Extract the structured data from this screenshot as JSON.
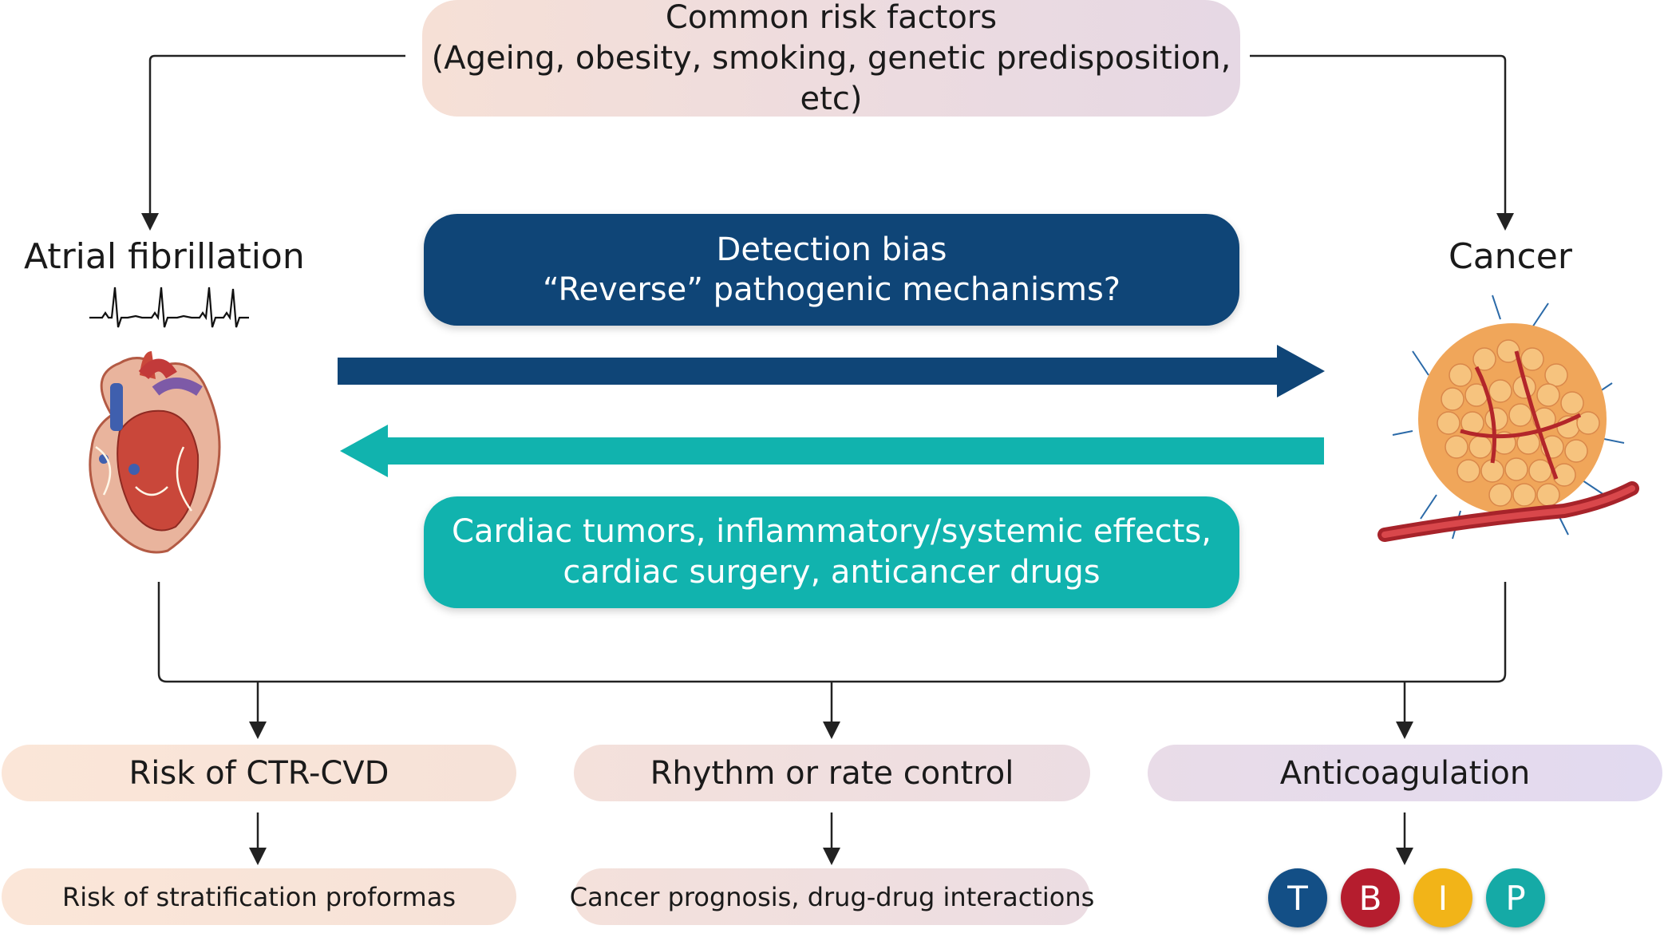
{
  "top_box": {
    "line1": "Common risk factors",
    "line2": "(Ageing, obesity, smoking, genetic predisposition, etc)"
  },
  "left_node": {
    "label": "Atrial fibrillation"
  },
  "right_node": {
    "label": "Cancer"
  },
  "blue_box": {
    "line1": "Detection bias",
    "line2": "“Reverse” pathogenic mechanisms?",
    "color": "#0f4577"
  },
  "teal_box": {
    "line1": "Cardiac tumors, inflammatory/systemic effects,",
    "line2": "cardiac surgery, anticancer drugs",
    "color": "#11b3ae"
  },
  "outcomes": {
    "ctr": "Risk of CTR-CVD",
    "rhythm": "Rhythm or rate control",
    "anticoag": "Anticoagulation",
    "strat": "Risk of stratification proformas",
    "prognosis": "Cancer prognosis, drug-drug interactions"
  },
  "tbip": [
    {
      "letter": "T",
      "color": "#134f86"
    },
    {
      "letter": "B",
      "color": "#b51d2e"
    },
    {
      "letter": "I",
      "color": "#f2b418"
    },
    {
      "letter": "P",
      "color": "#15aaa6"
    }
  ],
  "icons": {
    "ecg": "ecg-trace-icon",
    "heart": "heart-illustration",
    "tumor": "tumor-illustration"
  }
}
